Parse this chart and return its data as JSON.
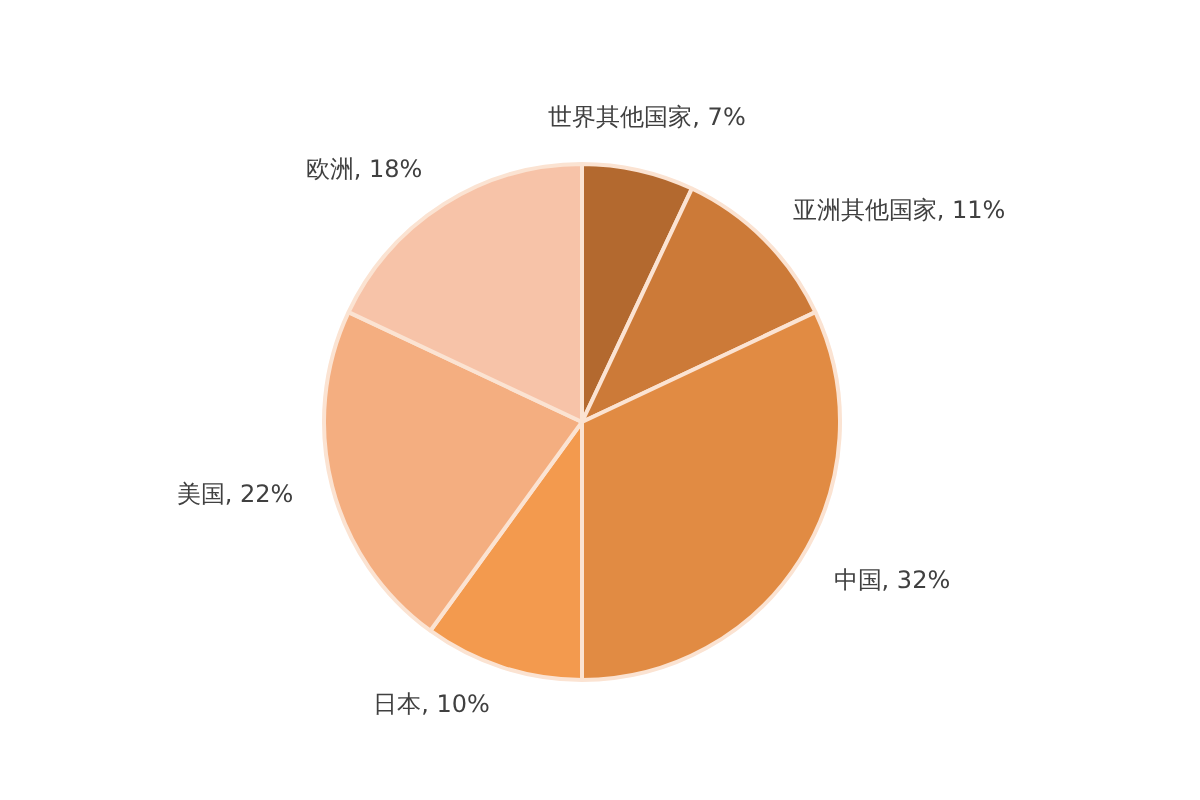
{
  "chart_data": {
    "type": "pie",
    "categories": [
      "世界其他国家",
      "亚洲其他国家",
      "中国",
      "日本",
      "美国",
      "欧洲"
    ],
    "values": [
      7,
      11,
      32,
      10,
      22,
      18
    ],
    "colors": [
      "#b3692f",
      "#cc7a38",
      "#e18b43",
      "#f39a4e",
      "#f4ae80",
      "#f7c3a8"
    ],
    "value_labels": [
      "7%",
      "11%",
      "32%",
      "10%",
      "22%",
      "18%"
    ],
    "legend": false
  }
}
